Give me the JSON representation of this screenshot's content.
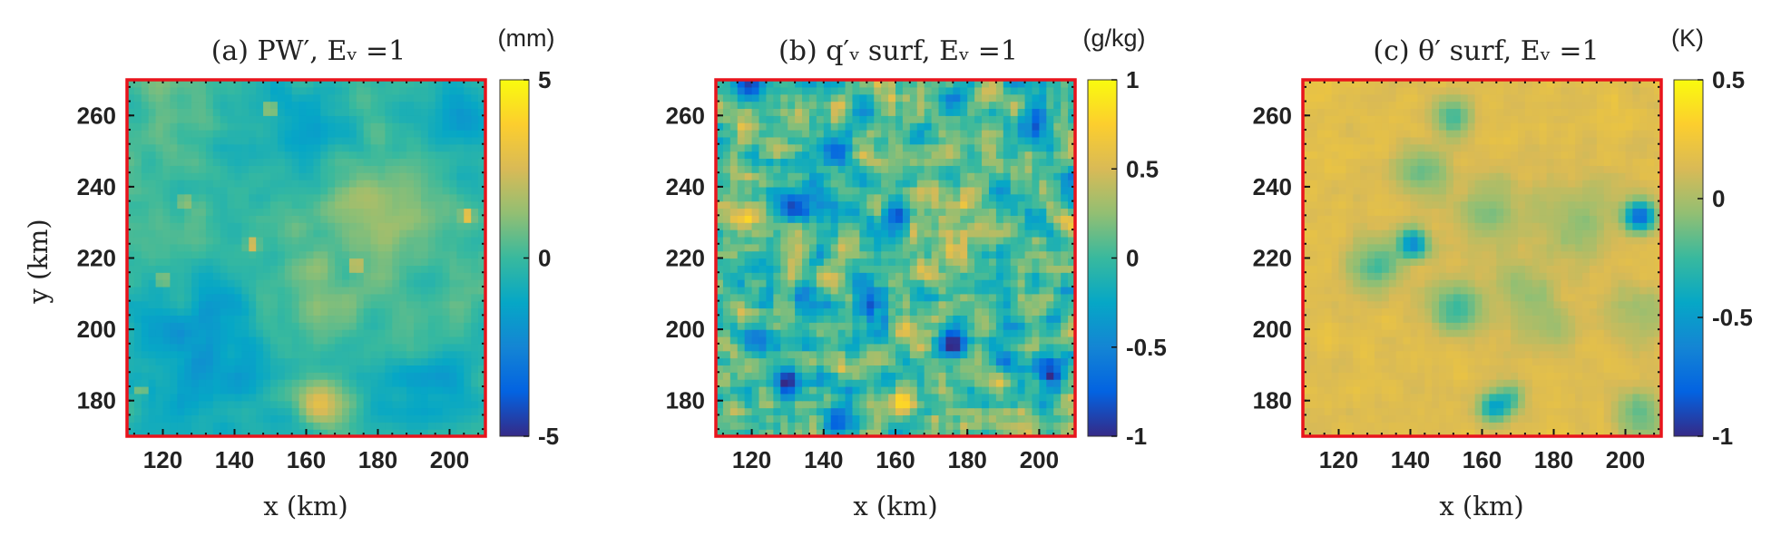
{
  "chart_data": [
    {
      "type": "heatmap",
      "id": "pw",
      "title": "(a)  PW′,  Eᵥ =1",
      "xlabel": "x (km)",
      "ylabel": "y (km)",
      "xlim": [
        110,
        210
      ],
      "ylim": [
        170,
        270
      ],
      "xticks": [
        120,
        140,
        160,
        180,
        200
      ],
      "xtick_labels": [
        "120",
        "140",
        "160",
        "180",
        "200"
      ],
      "yticks": [
        180,
        200,
        220,
        240,
        260
      ],
      "ytick_labels": [
        "180",
        "200",
        "220",
        "240",
        "260"
      ],
      "colorbar": {
        "unit": "(mm)",
        "range": [
          -5,
          5
        ],
        "ticks": [
          5,
          0,
          -5
        ],
        "tick_labels": [
          "5",
          "0",
          "-5"
        ]
      },
      "grid_cells": 50,
      "field": {
        "base": 0.2,
        "noise": 0.9,
        "smooth": 1.6,
        "seed": 11,
        "blobs": [
          [
            158,
            255,
            12,
            -1.6
          ],
          [
            205,
            260,
            10,
            -2.0
          ],
          [
            130,
            192,
            15,
            -2.2
          ],
          [
            172,
            186,
            12,
            -1.2
          ],
          [
            165,
            180,
            5,
            3.5
          ],
          [
            178,
            233,
            10,
            1.2
          ],
          [
            162,
            205,
            8,
            1.2
          ],
          [
            200,
            182,
            10,
            -1.5
          ]
        ],
        "spots": [
          [
            150,
            262,
            4.5
          ],
          [
            174,
            218,
            4.0
          ],
          [
            205,
            232,
            4.0
          ],
          [
            145,
            224,
            3.5
          ],
          [
            120,
            214,
            3.5
          ],
          [
            126,
            236,
            3.0
          ],
          [
            114,
            183,
            3.0
          ]
        ]
      }
    },
    {
      "type": "heatmap",
      "id": "qv",
      "title": "(b)  q′ᵥ surf,  Eᵥ =1",
      "xlabel": "x (km)",
      "ylabel": "",
      "xlim": [
        110,
        210
      ],
      "ylim": [
        170,
        270
      ],
      "xticks": [
        120,
        140,
        160,
        180,
        200
      ],
      "xtick_labels": [
        "120",
        "140",
        "160",
        "180",
        "200"
      ],
      "yticks": [
        180,
        200,
        220,
        240,
        260
      ],
      "ytick_labels": [
        "180",
        "200",
        "220",
        "240",
        "260"
      ],
      "colorbar": {
        "unit": "(g/kg)",
        "range": [
          -1,
          1
        ],
        "ticks": [
          1,
          0.5,
          0,
          -0.5,
          -1
        ],
        "tick_labels": [
          "1",
          "0.5",
          "0",
          "-0.5",
          "-1"
        ]
      },
      "grid_cells": 50,
      "field": {
        "base": 0.05,
        "noise": 0.45,
        "smooth": 1.0,
        "seed": 29,
        "blobs": [
          [
            132,
            236,
            3,
            -0.9
          ],
          [
            144,
            250,
            3,
            -0.8
          ],
          [
            176,
            196,
            3,
            -0.9
          ],
          [
            152,
            206,
            3,
            -0.8
          ],
          [
            130,
            186,
            3,
            -0.9
          ],
          [
            200,
            258,
            3,
            -0.8
          ],
          [
            176,
            266,
            3,
            -0.8
          ],
          [
            120,
            268,
            3,
            -0.7
          ],
          [
            160,
            232,
            3,
            -0.7
          ],
          [
            190,
            220,
            3,
            -0.6
          ],
          [
            204,
            188,
            3,
            -0.7
          ],
          [
            145,
            176,
            3,
            -0.6
          ],
          [
            178,
            226,
            7,
            0.25
          ],
          [
            162,
            178,
            3,
            0.6
          ],
          [
            114,
            230,
            4,
            0.4
          ]
        ],
        "spots": []
      }
    },
    {
      "type": "heatmap",
      "id": "theta",
      "title": "(c)  θ′ surf,  Eᵥ =1",
      "xlabel": "x (km)",
      "ylabel": "",
      "xlim": [
        110,
        210
      ],
      "ylim": [
        170,
        270
      ],
      "xticks": [
        120,
        140,
        160,
        180,
        200
      ],
      "xtick_labels": [
        "120",
        "140",
        "160",
        "180",
        "200"
      ],
      "yticks": [
        180,
        200,
        220,
        240,
        260
      ],
      "ytick_labels": [
        "180",
        "200",
        "220",
        "240",
        "260"
      ],
      "colorbar": {
        "unit": "(K)",
        "range": [
          -1,
          0.5
        ],
        "ticks": [
          0.5,
          0,
          -0.5,
          -1
        ],
        "tick_labels": [
          "0.5",
          "0",
          "-0.5",
          "-1"
        ]
      },
      "grid_cells": 50,
      "field": {
        "base": 0.16,
        "noise": 0.05,
        "smooth": 1.4,
        "seed": 47,
        "blobs": [
          [
            152,
            260,
            4,
            -0.35
          ],
          [
            143,
            244,
            5,
            -0.3
          ],
          [
            130,
            218,
            5,
            -0.4
          ],
          [
            141,
            224,
            3,
            -0.75
          ],
          [
            153,
            206,
            5,
            -0.45
          ],
          [
            204,
            232,
            3,
            -0.95
          ],
          [
            186,
            230,
            8,
            -0.22
          ],
          [
            162,
            233,
            7,
            -0.22
          ],
          [
            172,
            210,
            6,
            -0.2
          ],
          [
            205,
            205,
            6,
            -0.2
          ],
          [
            204,
            176,
            5,
            -0.35
          ],
          [
            163,
            178,
            3,
            -0.55
          ],
          [
            168,
            181,
            3,
            -0.35
          ],
          [
            180,
            200,
            5,
            -0.15
          ]
        ],
        "spots": []
      }
    }
  ]
}
